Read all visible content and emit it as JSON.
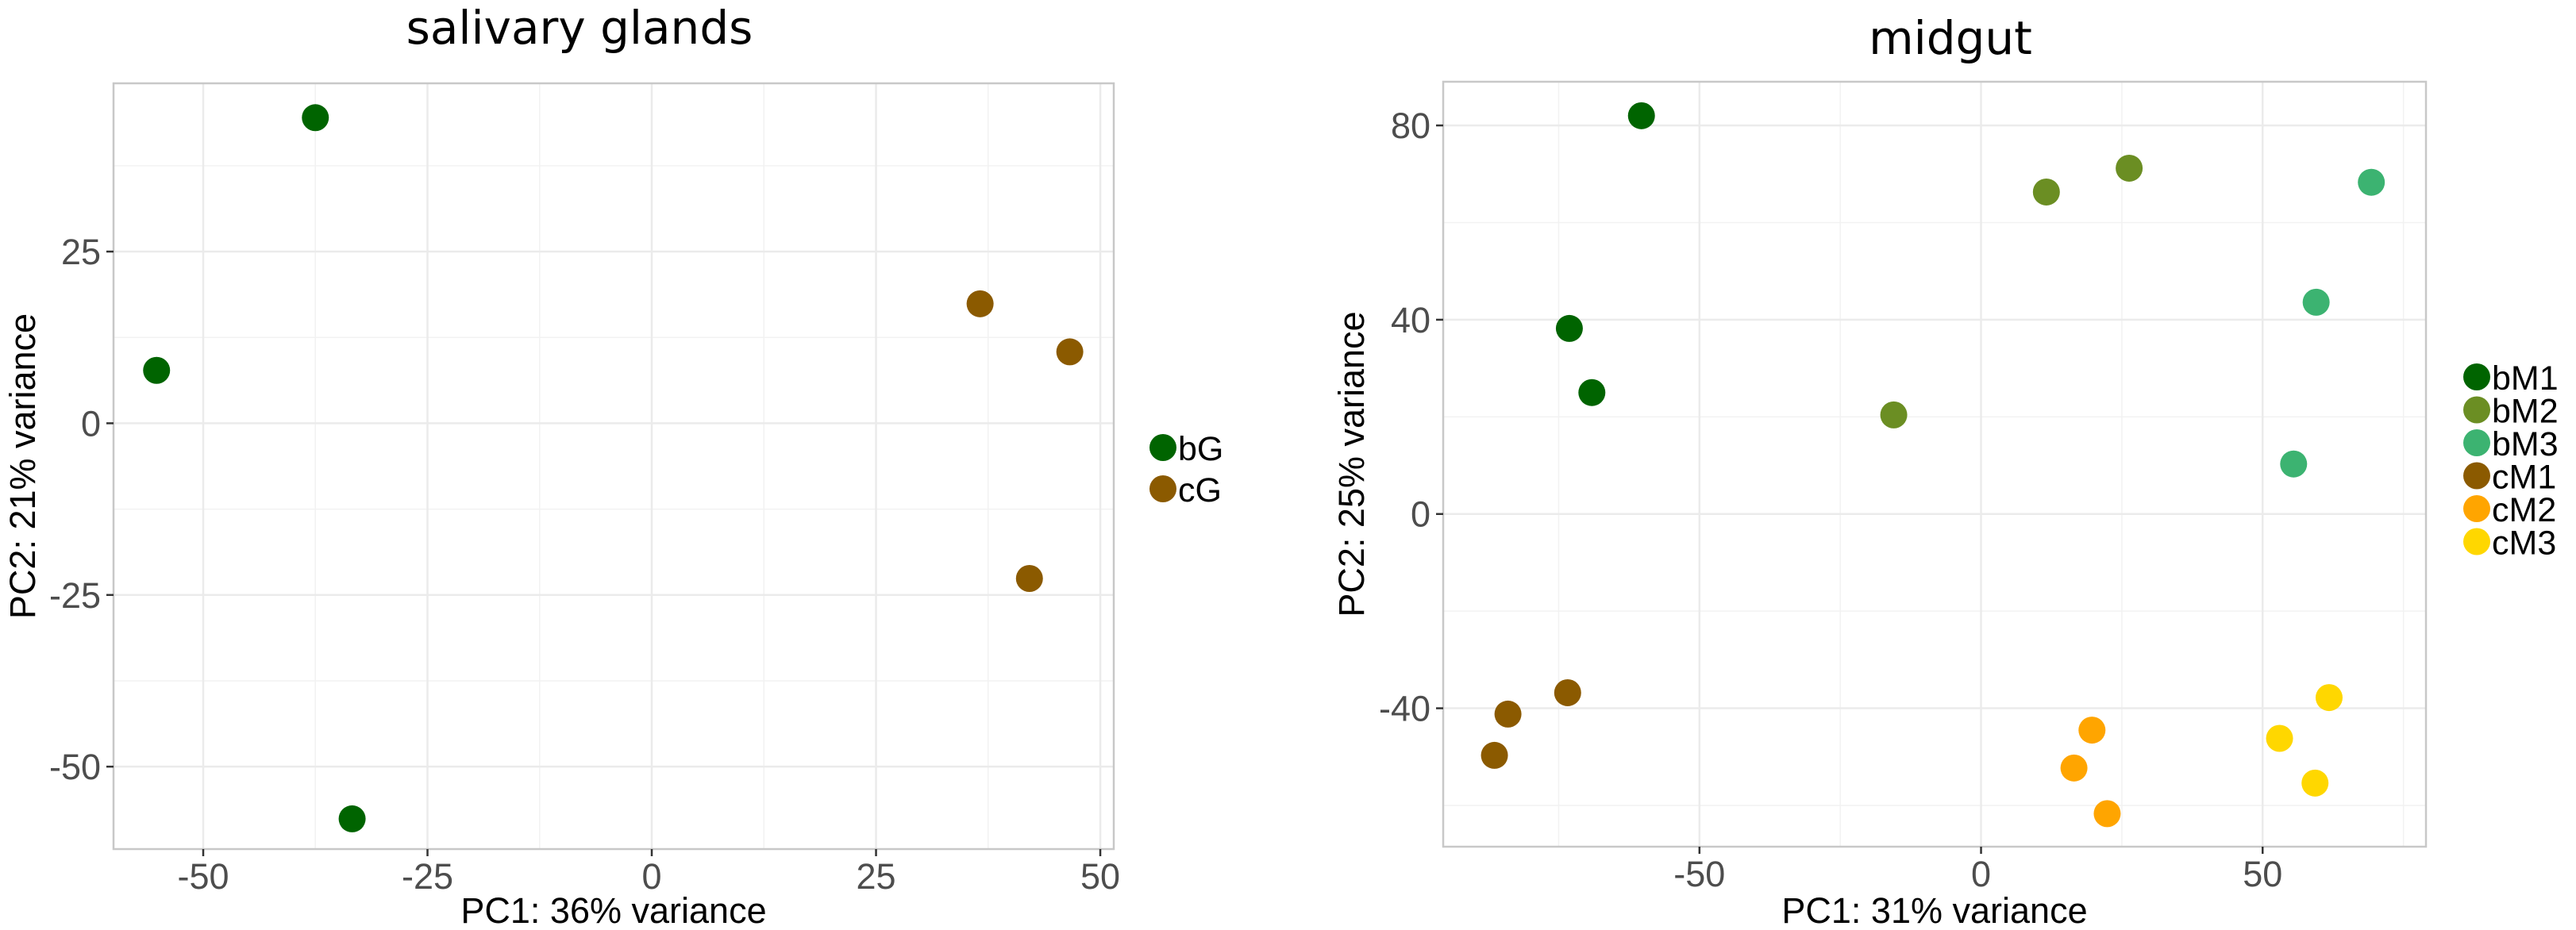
{
  "chart_data": [
    {
      "type": "scatter",
      "title": "salivary glands",
      "xlabel": "PC1: 36% variance",
      "ylabel": "PC2: 21% variance",
      "xlim": [
        -60,
        51.5
      ],
      "ylim": [
        -62,
        49.5
      ],
      "xticks": [
        -50,
        -25,
        0,
        25,
        50
      ],
      "xtick_labels": [
        "-50",
        "-25",
        "0",
        "25",
        "50"
      ],
      "yticks": [
        -50,
        -25,
        0,
        25
      ],
      "ytick_labels": [
        "-50",
        "-25",
        "0",
        "25"
      ],
      "grid": true,
      "legend_position": "right",
      "series": [
        {
          "name": "bG",
          "color": "#006400",
          "points": [
            [
              -37.5,
              44.5
            ],
            [
              -55.2,
              7.7
            ],
            [
              -33.4,
              -57.6
            ]
          ]
        },
        {
          "name": "cG",
          "color": "#8B5A00",
          "points": [
            [
              36.6,
              17.4
            ],
            [
              46.6,
              10.4
            ],
            [
              42.1,
              -22.6
            ]
          ]
        }
      ]
    },
    {
      "type": "scatter",
      "title": "midgut",
      "xlabel": "PC1: 31% variance",
      "ylabel": "PC2: 25% variance",
      "xlim": [
        -95.5,
        79
      ],
      "ylim": [
        -68.5,
        89
      ],
      "xticks": [
        -50,
        0,
        50
      ],
      "xtick_labels": [
        "-50",
        "0",
        "50"
      ],
      "yticks": [
        -40,
        0,
        40,
        80
      ],
      "ytick_labels": [
        "-40",
        "0",
        "40",
        "80"
      ],
      "grid": true,
      "legend_position": "right",
      "series": [
        {
          "name": "bM1",
          "color": "#006400",
          "points": [
            [
              -60.3,
              82.0
            ],
            [
              -73.1,
              38.2
            ],
            [
              -69.1,
              25.0
            ]
          ]
        },
        {
          "name": "bM2",
          "color": "#6B8E23",
          "points": [
            [
              11.6,
              66.3
            ],
            [
              26.3,
              71.2
            ],
            [
              -15.5,
              20.4
            ]
          ]
        },
        {
          "name": "bM3",
          "color": "#3CB371",
          "points": [
            [
              69.3,
              68.3
            ],
            [
              59.5,
              43.6
            ],
            [
              55.5,
              10.3
            ]
          ]
        },
        {
          "name": "cM1",
          "color": "#8B5A00",
          "points": [
            [
              -73.4,
              -36.8
            ],
            [
              -84.0,
              -41.2
            ],
            [
              -86.4,
              -49.7
            ]
          ]
        },
        {
          "name": "cM2",
          "color": "#FFA500",
          "points": [
            [
              19.7,
              -44.5
            ],
            [
              16.5,
              -52.3
            ],
            [
              22.4,
              -61.7
            ]
          ]
        },
        {
          "name": "cM3",
          "color": "#FFD700",
          "points": [
            [
              61.8,
              -37.8
            ],
            [
              53.0,
              -46.2
            ],
            [
              59.3,
              -55.4
            ]
          ]
        }
      ]
    }
  ]
}
